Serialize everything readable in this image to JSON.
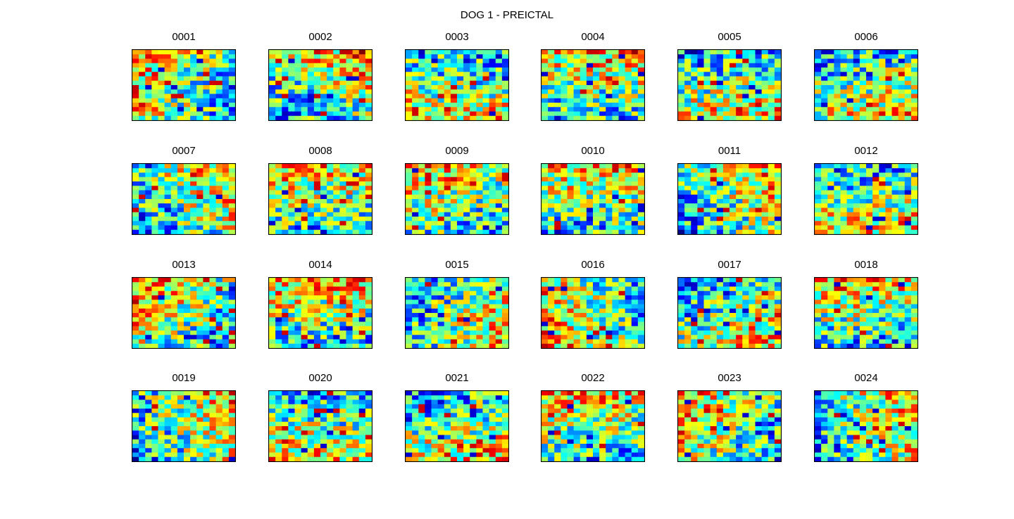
{
  "figure": {
    "title": "DOG 1 - PREICTAL"
  },
  "chart_data": {
    "type": "heatmap",
    "title": "DOG 1 - PREICTAL",
    "colormap": "jet",
    "grid_rows": 4,
    "grid_cols": 6,
    "cell_rows": 16,
    "cell_cols": 16,
    "panels": [
      {
        "title": "0001",
        "seed": 1
      },
      {
        "title": "0002",
        "seed": 2
      },
      {
        "title": "0003",
        "seed": 3
      },
      {
        "title": "0004",
        "seed": 4
      },
      {
        "title": "0005",
        "seed": 5
      },
      {
        "title": "0006",
        "seed": 6
      },
      {
        "title": "0007",
        "seed": 7
      },
      {
        "title": "0008",
        "seed": 8
      },
      {
        "title": "0009",
        "seed": 9
      },
      {
        "title": "0010",
        "seed": 10
      },
      {
        "title": "0011",
        "seed": 11
      },
      {
        "title": "0012",
        "seed": 12
      },
      {
        "title": "0013",
        "seed": 13
      },
      {
        "title": "0014",
        "seed": 14
      },
      {
        "title": "0015",
        "seed": 15
      },
      {
        "title": "0016",
        "seed": 16
      },
      {
        "title": "0017",
        "seed": 17
      },
      {
        "title": "0018",
        "seed": 18
      },
      {
        "title": "0019",
        "seed": 19
      },
      {
        "title": "0020",
        "seed": 20
      },
      {
        "title": "0021",
        "seed": 21
      },
      {
        "title": "0022",
        "seed": 22
      },
      {
        "title": "0023",
        "seed": 23
      },
      {
        "title": "0024",
        "seed": 24
      }
    ]
  }
}
